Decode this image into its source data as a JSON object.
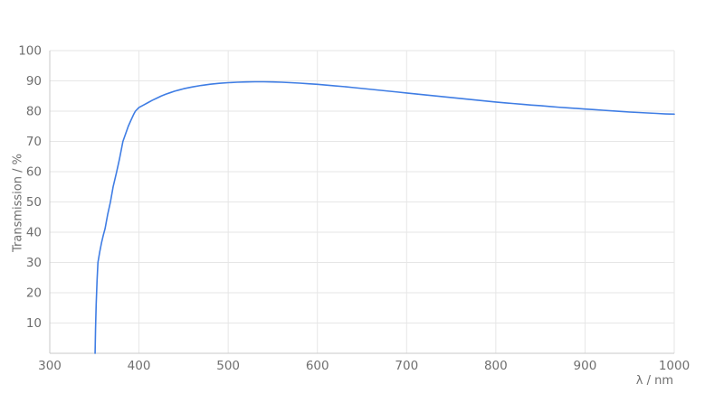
{
  "chart_data": {
    "type": "line",
    "title": "",
    "xlabel": "λ / nm",
    "ylabel": "Transmission / %",
    "xlim": [
      300,
      1000
    ],
    "ylim": [
      0,
      100
    ],
    "x_ticks": [
      300,
      400,
      500,
      600,
      700,
      800,
      900,
      1000
    ],
    "y_ticks": [
      10,
      20,
      30,
      40,
      50,
      60,
      70,
      80,
      90,
      100
    ],
    "grid": true,
    "legend": false,
    "colors": {
      "line": "#3f7de4",
      "grid": "#e6e6e6",
      "axis": "#c9c9c9",
      "tick_text": "#6f6f6f",
      "background": "#ffffff"
    },
    "series": [
      {
        "name": "Transmission",
        "color": "#3f7de4",
        "points": [
          [
            350.8,
            0
          ],
          [
            351.3,
            8
          ],
          [
            352,
            16
          ],
          [
            353,
            24
          ],
          [
            354,
            30
          ],
          [
            356,
            33.5
          ],
          [
            358,
            36.5
          ],
          [
            360,
            39
          ],
          [
            362,
            41.2
          ],
          [
            365,
            46
          ],
          [
            368,
            50
          ],
          [
            371,
            55
          ],
          [
            375,
            60
          ],
          [
            378,
            64
          ],
          [
            382,
            70
          ],
          [
            385,
            72.5
          ],
          [
            388,
            75
          ],
          [
            391,
            77
          ],
          [
            394,
            78.9
          ],
          [
            396,
            80
          ],
          [
            400,
            81.2
          ],
          [
            405,
            82
          ],
          [
            410,
            82.8
          ],
          [
            415,
            83.6
          ],
          [
            420,
            84.3
          ],
          [
            425,
            85
          ],
          [
            430,
            85.6
          ],
          [
            435,
            86.1
          ],
          [
            440,
            86.6
          ],
          [
            445,
            87
          ],
          [
            450,
            87.4
          ],
          [
            460,
            88
          ],
          [
            470,
            88.5
          ],
          [
            480,
            88.9
          ],
          [
            490,
            89.2
          ],
          [
            500,
            89.4
          ],
          [
            510,
            89.55
          ],
          [
            520,
            89.65
          ],
          [
            530,
            89.7
          ],
          [
            540,
            89.7
          ],
          [
            550,
            89.65
          ],
          [
            560,
            89.55
          ],
          [
            570,
            89.4
          ],
          [
            580,
            89.25
          ],
          [
            590,
            89.05
          ],
          [
            600,
            88.85
          ],
          [
            610,
            88.6
          ],
          [
            620,
            88.35
          ],
          [
            630,
            88.1
          ],
          [
            640,
            87.8
          ],
          [
            650,
            87.5
          ],
          [
            660,
            87.2
          ],
          [
            670,
            86.9
          ],
          [
            680,
            86.6
          ],
          [
            690,
            86.3
          ],
          [
            700,
            86.0
          ],
          [
            710,
            85.7
          ],
          [
            720,
            85.4
          ],
          [
            730,
            85.1
          ],
          [
            740,
            84.8
          ],
          [
            750,
            84.5
          ],
          [
            760,
            84.2
          ],
          [
            770,
            83.9
          ],
          [
            780,
            83.6
          ],
          [
            790,
            83.3
          ],
          [
            800,
            83.0
          ],
          [
            810,
            82.75
          ],
          [
            820,
            82.5
          ],
          [
            830,
            82.25
          ],
          [
            840,
            82.0
          ],
          [
            850,
            81.8
          ],
          [
            860,
            81.55
          ],
          [
            870,
            81.3
          ],
          [
            880,
            81.1
          ],
          [
            890,
            80.9
          ],
          [
            900,
            80.7
          ],
          [
            910,
            80.5
          ],
          [
            920,
            80.3
          ],
          [
            930,
            80.1
          ],
          [
            940,
            79.9
          ],
          [
            950,
            79.7
          ],
          [
            960,
            79.55
          ],
          [
            970,
            79.4
          ],
          [
            980,
            79.25
          ],
          [
            990,
            79.1
          ],
          [
            1000,
            79.0
          ]
        ]
      }
    ]
  }
}
